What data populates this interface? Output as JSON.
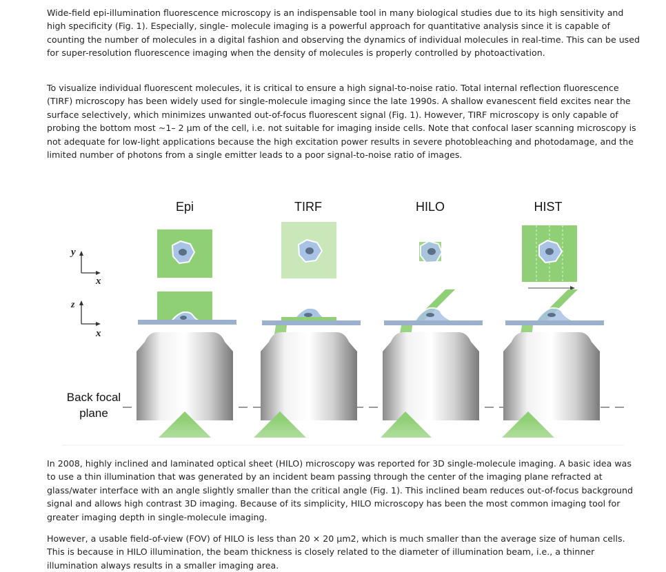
{
  "paragraphs": [
    "Wide-field epi-illumination fluorescence microscopy is an indispensable tool in many biological studies due to its high sensitivity and high specificity (Fig. 1). Especially, single- molecule imaging is a powerful approach for quantitative analysis since it is capable of counting the number of molecules in a digital fashion and observing the dynamics of individual molecules in real-time. This can be used for super-resolution fluorescence imaging when the density of molecules is properly controlled by photoactivation.",
    "To visualize individual fluorescent molecules, it is critical to ensure a high signal-to-noise ratio. Total internal reflection fluorescence (TIRF) microscopy has been widely used for single-molecule imaging since the late 1990s. A shallow evanescent field excites near the surface selectively, which minimizes unwanted out-of-focus fluorescent signal (Fig. 1). However, TIRF microscopy is only capable of probing the bottom most ~1– 2 μm of the cell, i.e. not suitable for imaging inside cells. Note that confocal laser scanning microscopy is not adequate for low-light applications because the high excitation power results in severe photobleaching and photodamage, and the limited number of photons from a single emitter leads to a poor signal-to-noise ratio of images.",
    "In 2008, highly inclined and laminated optical sheet (HILO) microscopy was reported for 3D single-molecule imaging. A basic idea was to use a thin illumination that was generated by an incident beam passing through the center of the imaging plane refracted at glass/water interface with an angle slightly smaller than the critical angle (Fig. 1). This inclined beam reduces out-of-focus background signal and allows high contrast 3D imaging. Because of its simplicity, HILO microscopy has been the most common imaging tool for greater imaging depth in single-molecule imaging.",
    "However, a usable field-of-view (FOV) of HILO is less than 20 × 20 μm2, which is much smaller than the average size of human cells. This is because in HILO illumination, the beam thickness is closely related to the diameter of illumination beam, i.e., a thinner illumination always results in a smaller imaging area."
  ],
  "figure": {
    "columns": [
      "Epi",
      "TIRF",
      "HILO",
      "HIST"
    ],
    "axis_top": {
      "y": "y",
      "x": "x"
    },
    "axis_bottom": {
      "z": "z",
      "x": "x"
    },
    "back_focal_line1": "Back focal",
    "back_focal_line2": "plane",
    "colors": {
      "illumination_green": "#8fcf75",
      "light_green": "#c9e7b8",
      "coverslip_blue": "#9bb0cc",
      "cell_fill": "#a9c3e4"
    }
  }
}
